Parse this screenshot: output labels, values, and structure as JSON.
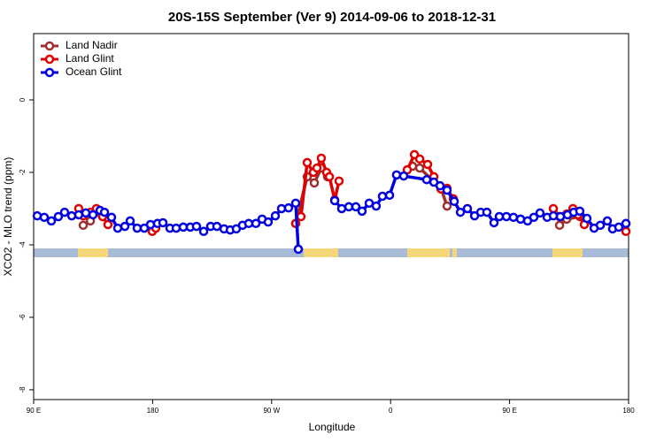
{
  "chart_data": {
    "type": "line",
    "title": "20S-15S September (Ver 9)   2014-09-06 to 2018-12-31",
    "x_label": "Longitude",
    "y_label": "XCO2 - MLO trend (ppm)",
    "xlim": [
      90,
      540
    ],
    "xticks": [
      {
        "value": 90,
        "label": "90 E"
      },
      {
        "value": 180,
        "label": "180"
      },
      {
        "value": 270,
        "label": "90 W"
      },
      {
        "value": 360,
        "label": "0"
      },
      {
        "value": 450,
        "label": "90 E"
      },
      {
        "value": 540,
        "label": "180"
      }
    ],
    "ylim": [
      -8.27,
      1.83
    ],
    "yticks": [
      0,
      -2,
      -4,
      -6,
      -8
    ],
    "legend": "top-left",
    "series": [
      {
        "name": "Land Nadir",
        "color": "#a03030",
        "x": [
          127.5,
          132.9,
          137.5,
          142.2,
          null,
          288.2,
          296.9,
          302.3,
          307.6,
          312.3,
          null,
          376.6,
          382.0,
          398.1,
          402.7,
          null,
          487.8,
          493.2,
          503.1
        ],
        "values": [
          -3.46,
          -3.34,
          -3.1,
          -3.22,
          null,
          -3.41,
          -2.12,
          -2.29,
          -1.88,
          -2.12,
          null,
          -1.83,
          -1.88,
          -2.44,
          -2.93,
          null,
          -3.46,
          -3.29,
          -3.22
        ]
      },
      {
        "name": "Land Glint",
        "color": "#e00000",
        "x": [
          124.1,
          127.5,
          132.9,
          137.5,
          142.2,
          146.2,
          null,
          179.7,
          182.4,
          null,
          288.2,
          292.2,
          296.9,
          301.6,
          304.3,
          307.6,
          311.6,
          313.7,
          317.7,
          321.0,
          null,
          372.6,
          378.0,
          382.0,
          388.0,
          392.7,
          398.1,
          402.7,
          407.4,
          null,
          483.1,
          487.8,
          493.2,
          497.9,
          501.8,
          506.5,
          null,
          538.0
        ],
        "values": [
          -3.0,
          -3.2,
          -3.1,
          -3.0,
          -3.22,
          -3.44,
          null,
          -3.63,
          -3.54,
          null,
          -3.41,
          -3.22,
          -1.73,
          -2.0,
          -1.88,
          -1.61,
          -2.0,
          -2.12,
          -2.76,
          -2.24,
          null,
          -1.93,
          -1.51,
          -1.63,
          -1.78,
          -2.12,
          -2.46,
          -2.44,
          -2.73,
          null,
          -3.0,
          -3.22,
          -3.15,
          -3.0,
          -3.17,
          -3.44,
          null,
          -3.63
        ]
      },
      {
        "name": "Ocean Glint",
        "color": "#0000e0",
        "x": [
          92.7,
          98.0,
          103.4,
          108.7,
          113.4,
          118.8,
          124.1,
          129.5,
          134.9,
          140.2,
          143.6,
          148.9,
          153.6,
          159.0,
          163.0,
          168.3,
          173.7,
          178.4,
          183.7,
          187.8,
          193.1,
          197.8,
          203.2,
          208.5,
          213.2,
          218.6,
          223.9,
          228.6,
          234.0,
          238.7,
          243.3,
          248.0,
          252.7,
          258.1,
          262.8,
          267.4,
          272.8,
          277.5,
          282.8,
          288.2,
          290.2,
          null,
          317.7,
          323.0,
          328.4,
          333.7,
          338.4,
          343.8,
          349.1,
          353.8,
          359.2,
          364.5,
          369.9,
          387.3,
          392.7,
          397.4,
          402.7,
          408.1,
          412.8,
          418.1,
          423.5,
          428.2,
          432.8,
          438.2,
          442.2,
          447.6,
          452.9,
          458.3,
          463.6,
          468.3,
          473.0,
          478.4,
          483.1,
          488.4,
          493.8,
          498.5,
          503.1,
          508.5,
          513.9,
          518.6,
          523.9,
          527.9,
          532.6,
          538.0
        ],
        "values": [
          -3.2,
          -3.24,
          -3.34,
          -3.22,
          -3.1,
          -3.2,
          -3.17,
          -3.12,
          -3.17,
          -3.05,
          -3.1,
          -3.24,
          -3.54,
          -3.49,
          -3.34,
          -3.54,
          -3.54,
          -3.44,
          -3.41,
          -3.39,
          -3.54,
          -3.54,
          -3.51,
          -3.51,
          -3.49,
          -3.63,
          -3.49,
          -3.49,
          -3.56,
          -3.59,
          -3.56,
          -3.46,
          -3.41,
          -3.41,
          -3.29,
          -3.37,
          -3.2,
          -3.0,
          -2.98,
          -2.85,
          -4.12,
          null,
          -2.78,
          -3.0,
          -2.95,
          -2.95,
          -3.07,
          -2.85,
          -2.93,
          -2.66,
          -2.63,
          -2.07,
          -2.1,
          -2.2,
          -2.27,
          -2.37,
          -2.49,
          -2.8,
          -3.1,
          -3.0,
          -3.2,
          -3.1,
          -3.1,
          -3.39,
          -3.22,
          -3.22,
          -3.24,
          -3.29,
          -3.34,
          -3.24,
          -3.12,
          -3.24,
          -3.2,
          -3.22,
          -3.17,
          -3.1,
          -3.07,
          -3.27,
          -3.54,
          -3.46,
          -3.34,
          -3.56,
          -3.51,
          -3.41
        ]
      }
    ]
  }
}
